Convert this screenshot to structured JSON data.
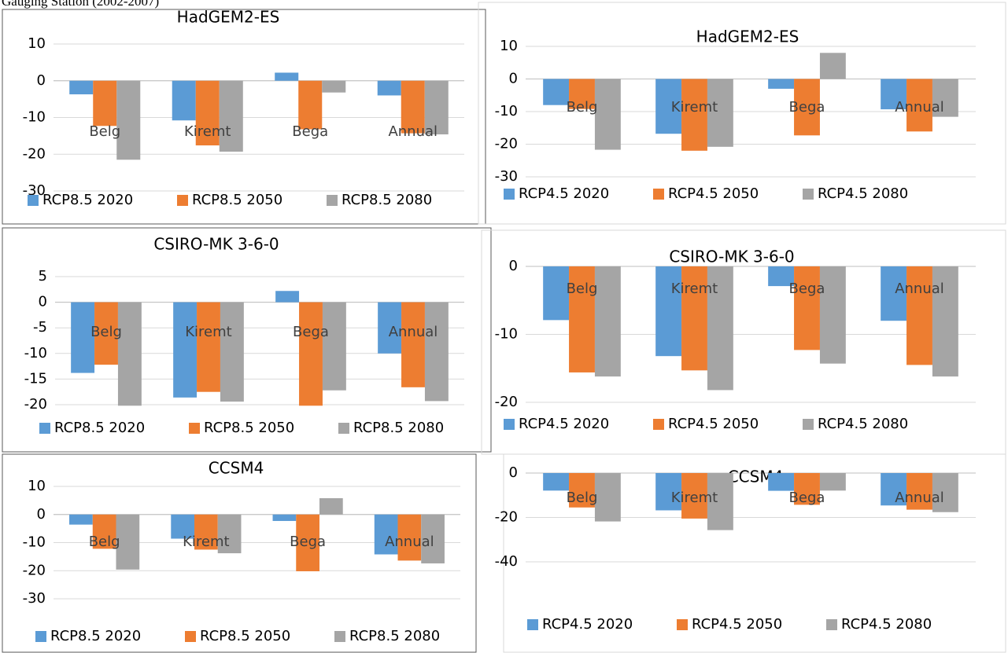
{
  "caption": "Gauging Station (2002-2007)",
  "chart_data": [
    {
      "type": "bar",
      "title": "HadGEM2-ES",
      "categories": [
        "Belg",
        "Kiremt",
        "Bega",
        "Annual"
      ],
      "series": [
        {
          "name": "RCP8.5 2020",
          "color": "#5b9bd5",
          "values": [
            -3.7,
            -10.8,
            2.2,
            -4.0
          ]
        },
        {
          "name": "RCP8.5 2050",
          "color": "#ed7d31",
          "values": [
            -12.3,
            -17.6,
            -13.2,
            -14.3
          ]
        },
        {
          "name": "RCP8.5 2080",
          "color": "#a5a5a5",
          "values": [
            -21.5,
            -19.3,
            -3.2,
            -14.6
          ]
        }
      ],
      "ylim": [
        -30,
        10
      ],
      "yticks": [
        10,
        0,
        -10,
        -20,
        -30
      ],
      "grid": true,
      "legend": "bottom"
    },
    {
      "type": "bar",
      "title": "HadGEM2-ES",
      "categories": [
        "Belg",
        "Kiremt",
        "Bega",
        "Annual"
      ],
      "series": [
        {
          "name": "RCP4.5 2020",
          "color": "#5b9bd5",
          "values": [
            -8.0,
            -16.8,
            -3.0,
            -9.3
          ]
        },
        {
          "name": "RCP4.5 2050",
          "color": "#ed7d31",
          "values": [
            -9.2,
            -22.0,
            -17.3,
            -16.1
          ]
        },
        {
          "name": "RCP4.5 2080",
          "color": "#a5a5a5",
          "values": [
            -21.7,
            -20.8,
            8.0,
            -11.6
          ]
        }
      ],
      "ylim": [
        -30,
        10
      ],
      "yticks": [
        10,
        0,
        -10,
        -20,
        -30
      ],
      "grid": true,
      "legend": "bottom"
    },
    {
      "type": "bar",
      "title": "CSIRO-MK 3-6-0",
      "categories": [
        "Belg",
        "Kiremt",
        "Bega",
        "Annual"
      ],
      "series": [
        {
          "name": "RCP8.5 2020",
          "color": "#5b9bd5",
          "values": [
            -13.8,
            -18.6,
            2.2,
            -10.0
          ]
        },
        {
          "name": "RCP8.5 2050",
          "color": "#ed7d31",
          "values": [
            -12.2,
            -17.5,
            -20.2,
            -16.6
          ]
        },
        {
          "name": "RCP8.5 2080",
          "color": "#a5a5a5",
          "values": [
            -20.2,
            -19.4,
            -17.2,
            -19.3
          ]
        }
      ],
      "ylim": [
        -20,
        5
      ],
      "yticks": [
        5,
        0,
        -5,
        -10,
        -15,
        -20
      ],
      "grid": true,
      "legend": "bottom"
    },
    {
      "type": "bar",
      "title": "CSIRO-MK 3-6-0",
      "categories": [
        "Belg",
        "Kiremt",
        "Bega",
        "Annual"
      ],
      "series": [
        {
          "name": "RCP4.5 2020",
          "color": "#5b9bd5",
          "values": [
            -7.9,
            -13.2,
            -2.9,
            -8.0
          ]
        },
        {
          "name": "RCP4.5 2050",
          "color": "#ed7d31",
          "values": [
            -15.6,
            -15.3,
            -12.3,
            -14.5
          ]
        },
        {
          "name": "RCP4.5 2080",
          "color": "#a5a5a5",
          "values": [
            -16.2,
            -18.2,
            -14.3,
            -16.2
          ]
        }
      ],
      "ylim": [
        -20,
        0
      ],
      "yticks": [
        0,
        -10,
        -20
      ],
      "grid": true,
      "legend": "bottom"
    },
    {
      "type": "bar",
      "title": "CCSM4",
      "categories": [
        "Belg",
        "Kiremt",
        "Bega",
        "Annual"
      ],
      "series": [
        {
          "name": "RCP8.5 2020",
          "color": "#5b9bd5",
          "values": [
            -3.6,
            -8.6,
            -2.3,
            -14.2
          ]
        },
        {
          "name": "RCP8.5 2050",
          "color": "#ed7d31",
          "values": [
            -12.2,
            -12.5,
            -20.2,
            -16.4
          ]
        },
        {
          "name": "RCP8.5 2080",
          "color": "#a5a5a5",
          "values": [
            -19.6,
            -13.8,
            5.8,
            -17.4
          ]
        }
      ],
      "ylim": [
        -30,
        10
      ],
      "yticks": [
        10,
        0,
        -10,
        -20,
        -30
      ],
      "grid": true,
      "legend": "bottom"
    },
    {
      "type": "bar",
      "title": "CCSM4",
      "categories": [
        "Belg",
        "Kiremt",
        "Bega",
        "Annual"
      ],
      "series": [
        {
          "name": "RCP4.5 2020",
          "color": "#5b9bd5",
          "values": [
            -7.9,
            -16.8,
            -8.0,
            -14.6
          ]
        },
        {
          "name": "RCP4.5 2050",
          "color": "#ed7d31",
          "values": [
            -15.5,
            -20.5,
            -14.3,
            -16.5
          ]
        },
        {
          "name": "RCP4.5 2080",
          "color": "#a5a5a5",
          "values": [
            -21.8,
            -25.7,
            -7.9,
            -17.6
          ]
        }
      ],
      "ylim": [
        -40,
        0
      ],
      "yticks": [
        0,
        -20,
        -40
      ],
      "grid": true,
      "legend": "bottom"
    }
  ]
}
